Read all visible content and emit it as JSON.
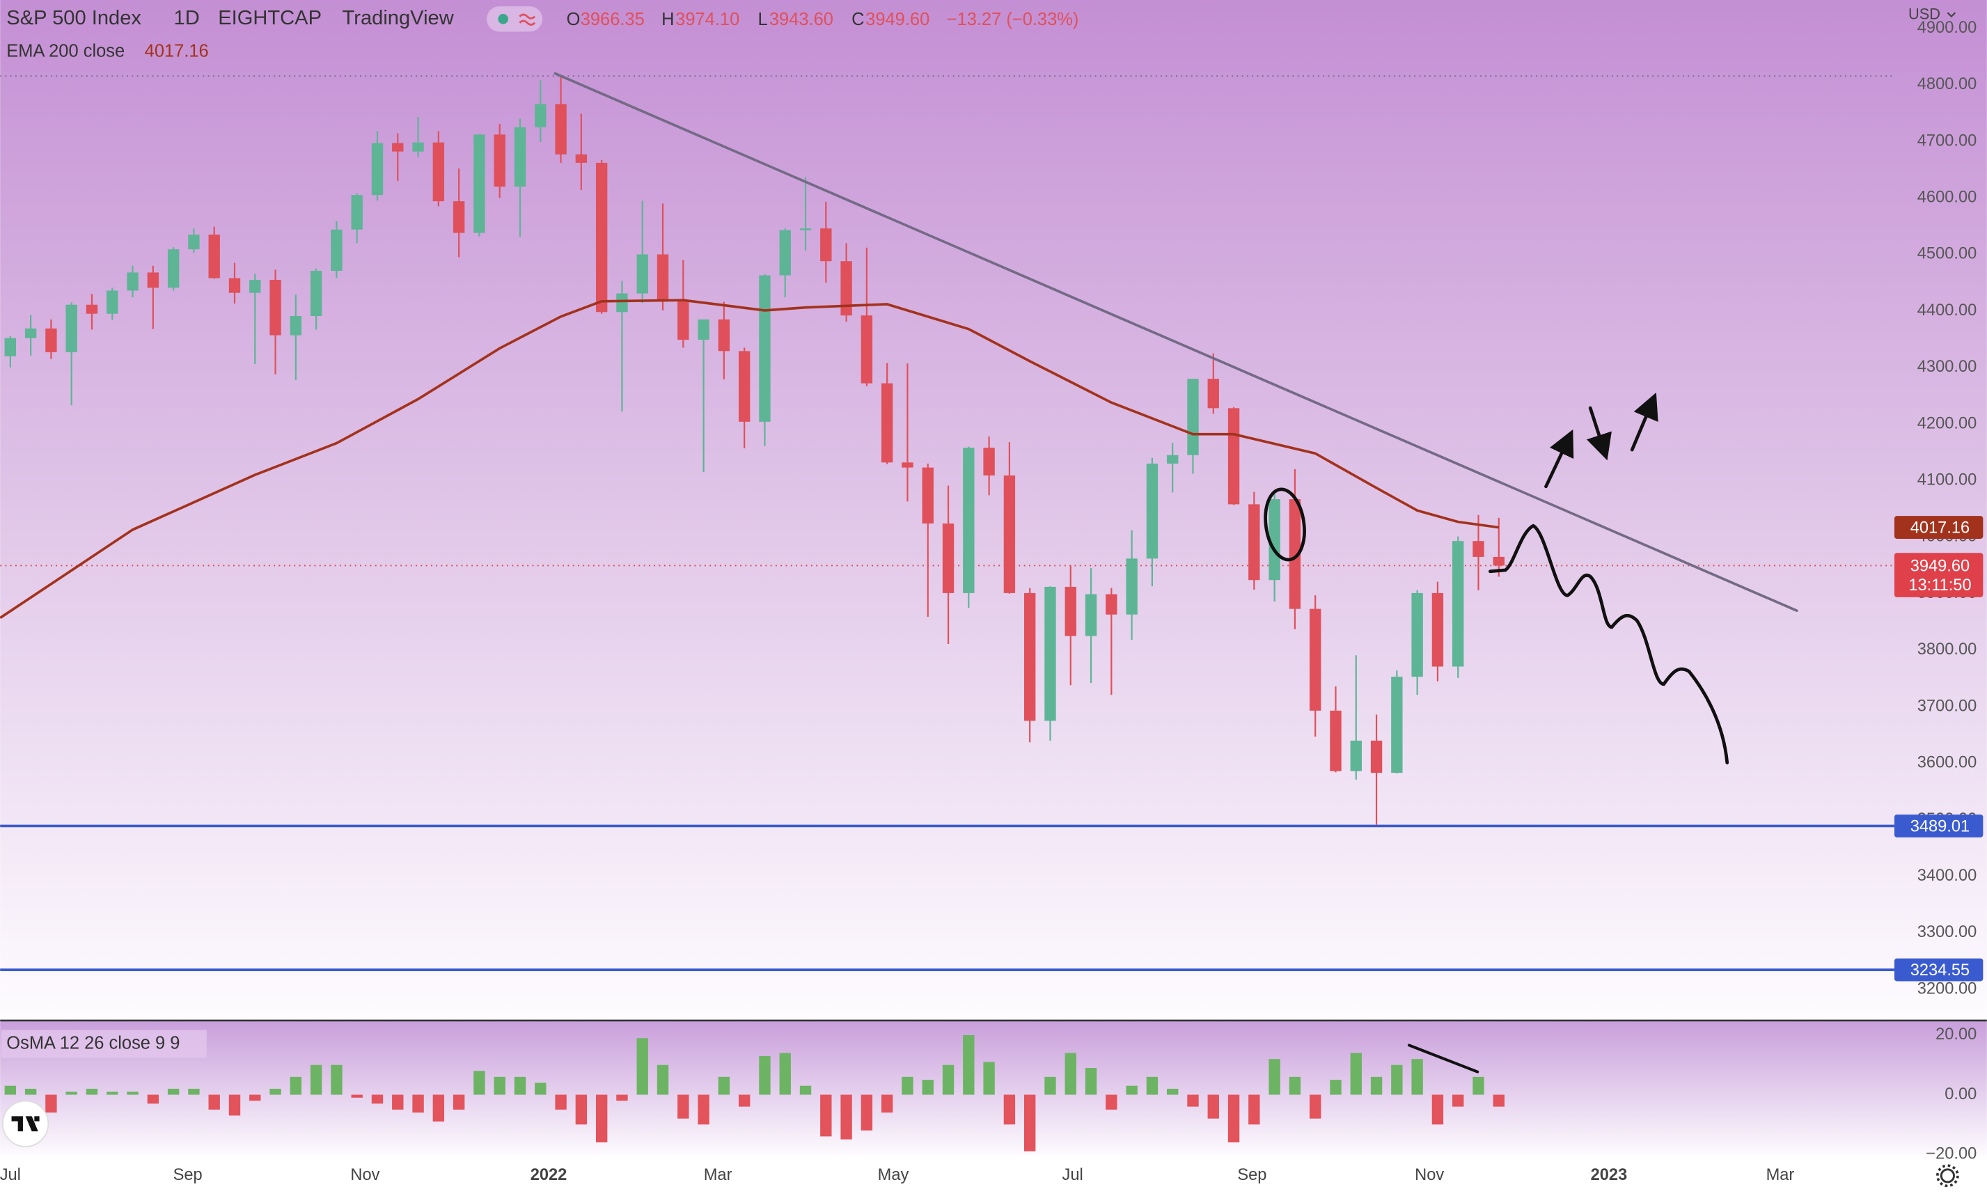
{
  "header": {
    "symbol": "S&P 500 Index",
    "interval": "1D",
    "exchange": "EIGHTCAP",
    "source": "TradingView",
    "ohlc": [
      [
        "O",
        "3966.35"
      ],
      [
        "H",
        "3974.10"
      ],
      [
        "L",
        "3943.60"
      ],
      [
        "C",
        "3949.60"
      ]
    ],
    "change": "−13.27 (−0.33%)",
    "currency": "USD"
  },
  "chart_data": [
    {
      "type": "candlestick",
      "xlim": [
        -0.5,
        92.4
      ],
      "xticks": [
        {
          "value": 0,
          "label": "Jul"
        },
        {
          "value": 8.7,
          "label": "Sep"
        },
        {
          "value": 17.4,
          "label": "Nov"
        },
        {
          "value": 26.4,
          "label": "2022"
        },
        {
          "value": 34.7,
          "label": "Mar"
        },
        {
          "value": 43.3,
          "label": "May"
        },
        {
          "value": 52.1,
          "label": "Jul"
        },
        {
          "value": 60.9,
          "label": "Sep"
        },
        {
          "value": 69.6,
          "label": "Nov"
        },
        {
          "value": 78.4,
          "label": "2023"
        },
        {
          "value": 86.8,
          "label": "Mar"
        }
      ],
      "ylim": [
        3146,
        4950
      ],
      "yticks": [
        {
          "value": 4900,
          "label": "4900.00"
        },
        {
          "value": 4800,
          "label": "4800.00"
        },
        {
          "value": 4700,
          "label": "4700.00"
        },
        {
          "value": 4600,
          "label": "4600.00"
        },
        {
          "value": 4500,
          "label": "4500.00"
        },
        {
          "value": 4400,
          "label": "4400.00"
        },
        {
          "value": 4300,
          "label": "4300.00"
        },
        {
          "value": 4200,
          "label": "4200.00"
        },
        {
          "value": 4100,
          "label": "4100.00"
        },
        {
          "value": 4000,
          "label": "4000.00"
        },
        {
          "value": 3900,
          "label": "3900.00"
        },
        {
          "value": 3800,
          "label": "3800.00"
        },
        {
          "value": 3700,
          "label": "3700.00"
        },
        {
          "value": 3600,
          "label": "3600.00"
        },
        {
          "value": 3500,
          "label": "3500.00"
        },
        {
          "value": 3400,
          "label": "3400.00"
        },
        {
          "value": 3300,
          "label": "3300.00"
        },
        {
          "value": 3200,
          "label": "3200.00"
        }
      ],
      "open": [
        4320,
        4352,
        4369,
        4327,
        4411,
        4395,
        4436,
        4468,
        4441,
        4509,
        4535,
        4458,
        4432,
        4455,
        4357,
        4391,
        4471,
        4544,
        4605,
        4697,
        4682,
        4698,
        4594,
        4538,
        4712,
        4620,
        4725,
        4766,
        4677,
        4662,
        4398,
        4431,
        4500,
        4418,
        4349,
        4385,
        4329,
        4204,
        4463,
        4543,
        4546,
        4488,
        4392,
        4272,
        4132,
        4123,
        4024,
        3901,
        4158,
        4109,
        3901,
        3675,
        3912,
        3825,
        3899,
        3863,
        3962,
        4130,
        4145,
        4280,
        4228,
        4058,
        3924,
        4067,
        3873,
        3693,
        3586,
        3640,
        3583,
        3753,
        3901,
        3771,
        3993,
        3965
      ],
      "high": [
        4356,
        4393,
        4385,
        4415,
        4430,
        4441,
        4480,
        4480,
        4513,
        4546,
        4549,
        4485,
        4466,
        4473,
        4429,
        4475,
        4559,
        4608,
        4718,
        4714,
        4743,
        4718,
        4652,
        4713,
        4731,
        4740,
        4808,
        4818,
        4749,
        4667,
        4453,
        4595,
        4590,
        4490,
        4385,
        4416,
        4335,
        4465,
        4546,
        4637,
        4593,
        4520,
        4512,
        4308,
        4307,
        4130,
        4091,
        4160,
        4178,
        4168,
        3910,
        3913,
        3950,
        3945,
        3910,
        4012,
        4140,
        4167,
        4280,
        4325,
        4230,
        4080,
        4076,
        4120,
        3897,
        3736,
        3791,
        3686,
        3764,
        3906,
        3921,
        4001,
        4039,
        4034
      ],
      "low": [
        4300,
        4321,
        4315,
        4233,
        4367,
        4384,
        4424,
        4368,
        4436,
        4503,
        4457,
        4413,
        4306,
        4288,
        4278,
        4367,
        4458,
        4520,
        4595,
        4630,
        4672,
        4585,
        4495,
        4532,
        4600,
        4531,
        4699,
        4662,
        4614,
        4395,
        4222,
        4414,
        4401,
        4335,
        4115,
        4279,
        4157,
        4161,
        4424,
        4507,
        4450,
        4381,
        4267,
        4129,
        4063,
        3859,
        3811,
        3875,
        4074,
        3900,
        3637,
        3640,
        3738,
        3742,
        3721,
        3818,
        3913,
        4079,
        4112,
        4218,
        4057,
        3907,
        3886,
        3837,
        3647,
        3584,
        3571,
        3491,
        3582,
        3721,
        3745,
        3751,
        3906,
        3930
      ],
      "close": [
        4352,
        4369,
        4327,
        4411,
        4395,
        4436,
        4468,
        4441,
        4509,
        4535,
        4458,
        4432,
        4455,
        4357,
        4391,
        4471,
        4544,
        4605,
        4697,
        4682,
        4698,
        4594,
        4538,
        4712,
        4620,
        4725,
        4766,
        4677,
        4662,
        4398,
        4431,
        4500,
        4418,
        4349,
        4385,
        4329,
        4204,
        4463,
        4543,
        4546,
        4488,
        4392,
        4272,
        4132,
        4123,
        4024,
        3901,
        4158,
        4109,
        3901,
        3675,
        3912,
        3825,
        3899,
        3863,
        3962,
        4130,
        4145,
        4280,
        4228,
        4058,
        3924,
        4067,
        3873,
        3693,
        3586,
        3640,
        3583,
        3753,
        3901,
        3771,
        3993,
        3965,
        3949.6
      ],
      "up_color": "#5db596",
      "down_color": "#e0505a",
      "ema": {
        "name": "EMA 200 close",
        "color": "#a3321c",
        "x": [
          -0.5,
          6,
          12,
          16,
          20,
          24,
          27,
          29,
          33,
          37,
          39,
          43,
          47,
          50,
          54,
          58,
          60,
          64,
          67,
          69,
          71,
          73
        ],
        "values": [
          3857,
          4013,
          4110,
          4166,
          4244,
          4334,
          4390,
          4417,
          4419,
          4401,
          4406,
          4412,
          4368,
          4311,
          4238,
          4182,
          4182,
          4148,
          4087,
          4047,
          4027,
          4017
        ],
        "last": {
          "value": 4017.16,
          "label": "4017.16"
        }
      },
      "last_price": {
        "value": 3949.6,
        "label": "3949.60",
        "countdown": "13:11:50",
        "color": "#e0404a"
      },
      "levels": [
        {
          "value": 3489.01,
          "label": "3489.01"
        },
        {
          "value": 3234.55,
          "label": "3234.55"
        }
      ],
      "level_color": "#3a5bd0"
    },
    {
      "type": "bar",
      "name": "OsMA 12 26 close 9 9",
      "xlim": [
        -0.5,
        92.4
      ],
      "ylim": [
        -20.4,
        24.7
      ],
      "yticks": [
        {
          "value": 20,
          "label": "20.00"
        },
        {
          "value": 0,
          "label": "0.00"
        },
        {
          "value": -20,
          "label": "−20.00"
        }
      ],
      "values": [
        3,
        2,
        -6,
        1,
        2,
        1,
        1,
        -3,
        2,
        2,
        -5,
        -7,
        -2,
        2,
        6,
        10,
        10,
        -1,
        -3,
        -5,
        -6,
        -9,
        -5,
        8,
        6,
        6,
        4,
        -5,
        -10,
        -16,
        -2,
        19,
        10,
        -8,
        -10,
        6,
        -4,
        13,
        14,
        3,
        -14,
        -15,
        -12,
        -6,
        6,
        5,
        10,
        20,
        11,
        -10,
        -19,
        6,
        14,
        9,
        -5,
        3,
        6,
        2,
        -4,
        -8,
        -16,
        -10,
        12,
        6,
        -8,
        5,
        14,
        6,
        10,
        12,
        -10,
        -4,
        6,
        -4
      ],
      "up_color": "#6cb463",
      "down_color": "#e2535b"
    }
  ]
}
